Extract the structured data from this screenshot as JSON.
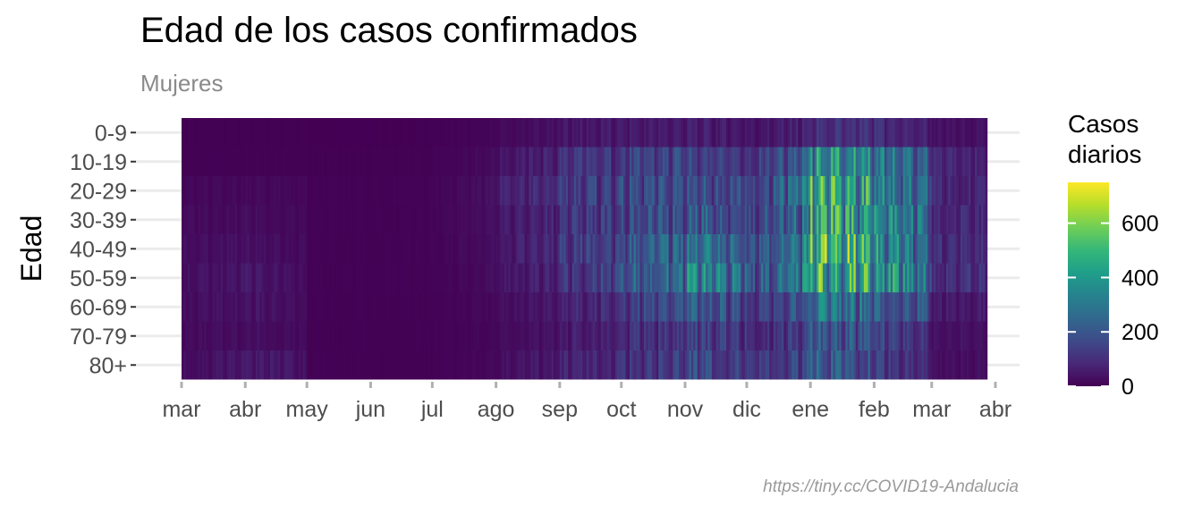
{
  "chart_data": {
    "type": "heatmap",
    "title": "Edad de los casos confirmados",
    "subtitle": "Mujeres",
    "ylabel": "Edad",
    "xlabel": "",
    "caption": "https://tiny.cc/COVID19-Andalucia",
    "x_range": [
      "2020-03-01",
      "2021-03-27"
    ],
    "x_ticks": [
      {
        "date": "2020-03-01",
        "label": "mar"
      },
      {
        "date": "2020-04-01",
        "label": "abr"
      },
      {
        "date": "2020-05-01",
        "label": "may"
      },
      {
        "date": "2020-06-01",
        "label": "jun"
      },
      {
        "date": "2020-07-01",
        "label": "jul"
      },
      {
        "date": "2020-08-01",
        "label": "ago"
      },
      {
        "date": "2020-09-01",
        "label": "sep"
      },
      {
        "date": "2020-10-01",
        "label": "oct"
      },
      {
        "date": "2020-11-01",
        "label": "nov"
      },
      {
        "date": "2020-12-01",
        "label": "dic"
      },
      {
        "date": "2021-01-01",
        "label": "ene"
      },
      {
        "date": "2021-02-01",
        "label": "feb"
      },
      {
        "date": "2021-03-01",
        "label": "mar"
      },
      {
        "date": "2021-04-01",
        "label": "abr"
      }
    ],
    "age_groups": [
      "0-9",
      "10-19",
      "20-29",
      "30-39",
      "40-49",
      "50-59",
      "60-69",
      "70-79",
      "80+"
    ],
    "color_scale": "viridis",
    "legend": {
      "title": "Casos diarios",
      "range": [
        0,
        750
      ],
      "ticks": [
        0,
        200,
        400,
        600
      ],
      "placement": "right"
    },
    "grid": true,
    "monthly_peak_daily_cases": {
      "months": [
        "mar",
        "abr",
        "may",
        "jun",
        "jul",
        "ago",
        "sep",
        "oct",
        "nov",
        "dic",
        "ene",
        "feb",
        "mar"
      ],
      "series": [
        {
          "name": "0-9",
          "values": [
            2,
            3,
            1,
            1,
            3,
            25,
            70,
            80,
            90,
            60,
            150,
            140,
            50
          ]
        },
        {
          "name": "10-19",
          "values": [
            3,
            5,
            2,
            2,
            8,
            60,
            160,
            200,
            260,
            140,
            560,
            480,
            110
          ]
        },
        {
          "name": "20-29",
          "values": [
            20,
            30,
            5,
            5,
            12,
            90,
            200,
            230,
            300,
            170,
            700,
            520,
            120
          ]
        },
        {
          "name": "30-39",
          "values": [
            30,
            40,
            5,
            5,
            10,
            70,
            170,
            230,
            350,
            190,
            650,
            560,
            120
          ]
        },
        {
          "name": "40-49",
          "values": [
            40,
            50,
            5,
            5,
            10,
            70,
            180,
            280,
            460,
            240,
            760,
            620,
            140
          ]
        },
        {
          "name": "50-59",
          "values": [
            45,
            70,
            6,
            5,
            10,
            60,
            160,
            300,
            500,
            260,
            700,
            640,
            150
          ]
        },
        {
          "name": "60-69",
          "values": [
            40,
            60,
            5,
            4,
            8,
            40,
            110,
            200,
            330,
            160,
            450,
            380,
            80
          ]
        },
        {
          "name": "70-79",
          "values": [
            30,
            50,
            4,
            3,
            6,
            30,
            80,
            140,
            220,
            110,
            320,
            230,
            50
          ]
        },
        {
          "name": "80+",
          "values": [
            40,
            90,
            5,
            3,
            5,
            40,
            110,
            150,
            260,
            150,
            330,
            200,
            40
          ]
        }
      ]
    }
  }
}
